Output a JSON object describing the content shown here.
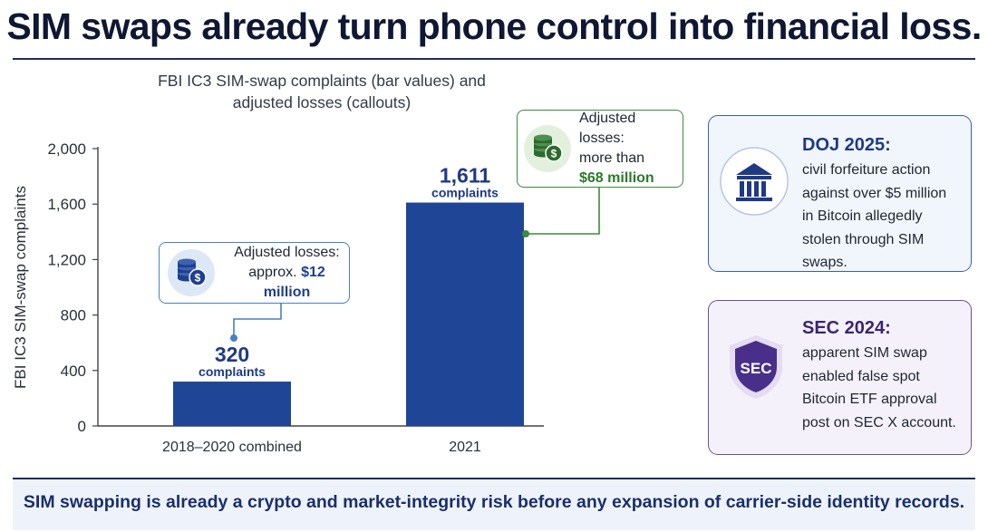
{
  "headline": "SIM swaps already turn phone control into financial loss.",
  "chart_data": {
    "type": "bar",
    "title_lines": [
      "FBI IC3 SIM-swap complaints (bar values) and",
      "adjusted losses (callouts)"
    ],
    "ylabel": "FBI IC3 SIM-swap complaints",
    "xlabel": "",
    "ylim": [
      0,
      2000
    ],
    "yticks": [
      0,
      400,
      800,
      1200,
      1600,
      2000
    ],
    "ytick_labels": [
      "0",
      "400",
      "800",
      "1,200",
      "1,600",
      "2,000"
    ],
    "categories": [
      "2018–2020 combined",
      "2021"
    ],
    "values": [
      320,
      1611
    ],
    "value_labels": [
      "320",
      "1,611"
    ],
    "value_sublabel": "complaints",
    "bar_color": "#1f4597",
    "grid": false
  },
  "callouts": [
    {
      "line1": "Adjusted losses:",
      "prefix": "approx.",
      "amount": "$12 million",
      "color": "#4a7fc1"
    },
    {
      "line1": "Adjusted losses:",
      "line2": "more than",
      "amount": "$68 million",
      "color": "#3c8a3c"
    }
  ],
  "cards": [
    {
      "heading": "DOJ 2025:",
      "icon": "bank-building-icon",
      "lines": [
        "civil forfeiture action",
        "against over $5 million",
        "in Bitcoin allegedly",
        "stolen through SIM swaps."
      ]
    },
    {
      "heading": "SEC 2024:",
      "icon": "sec-shield-icon",
      "icon_text": "SEC",
      "lines": [
        "apparent SIM swap",
        "enabled false spot",
        "Bitcoin ETF approval",
        "post on SEC X account."
      ]
    }
  ],
  "footer": "SIM swapping is already a crypto and market-integrity risk before any expansion of carrier-side identity records."
}
